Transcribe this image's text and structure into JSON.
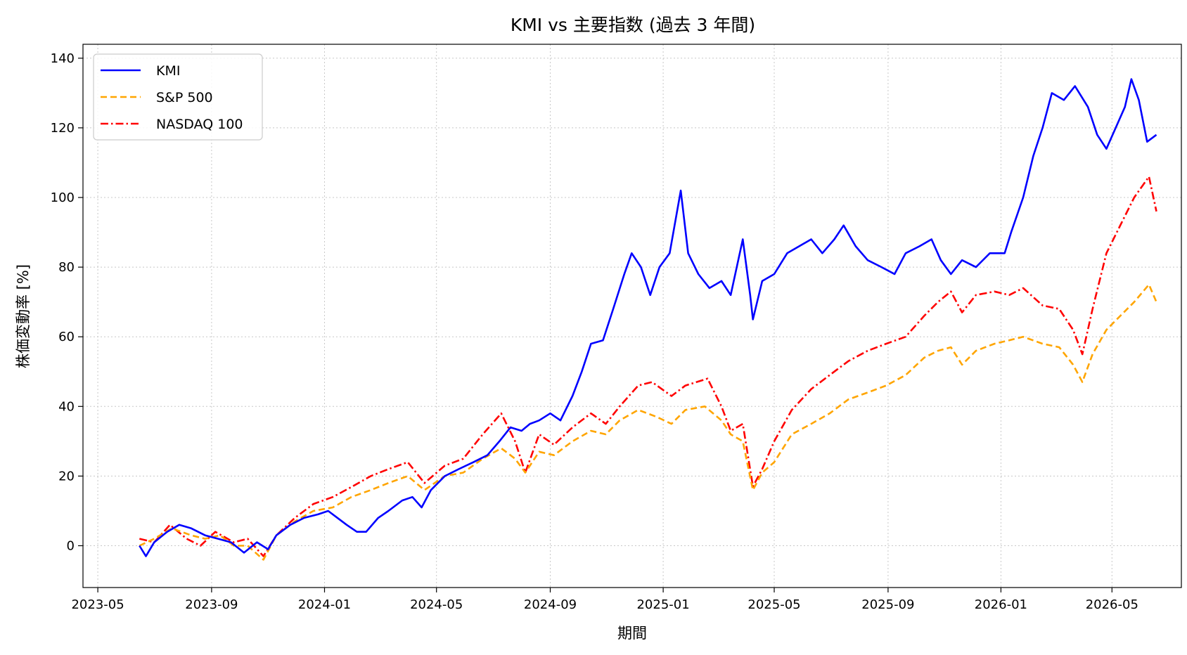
{
  "chart_data": {
    "type": "line",
    "title": "KMI vs 主要指数 (過去 3 年間)",
    "xlabel": "期間",
    "ylabel": "株価変動率 [%]",
    "xlim": [
      "2023-04-15",
      "2026-07-15"
    ],
    "ylim": [
      -12,
      144
    ],
    "x_ticks": [
      "2023-05",
      "2023-09",
      "2024-01",
      "2024-05",
      "2024-09",
      "2025-01",
      "2025-05",
      "2025-09",
      "2026-01",
      "2026-05"
    ],
    "y_ticks": [
      0,
      20,
      40,
      60,
      80,
      100,
      120,
      140
    ],
    "grid": true,
    "legend_position": "top-left",
    "series": [
      {
        "name": "KMI",
        "color": "#0000ff",
        "dash": "solid",
        "points": [
          [
            "2023-06-15",
            0
          ],
          [
            "2023-06-22",
            -3
          ],
          [
            "2023-07-01",
            1
          ],
          [
            "2023-07-15",
            4
          ],
          [
            "2023-07-28",
            6
          ],
          [
            "2023-08-10",
            5
          ],
          [
            "2023-08-25",
            3
          ],
          [
            "2023-09-08",
            2
          ],
          [
            "2023-09-22",
            1
          ],
          [
            "2023-10-06",
            -2
          ],
          [
            "2023-10-20",
            1
          ],
          [
            "2023-11-01",
            -1
          ],
          [
            "2023-11-10",
            3
          ],
          [
            "2023-11-25",
            6
          ],
          [
            "2023-12-10",
            8
          ],
          [
            "2023-12-25",
            9
          ],
          [
            "2024-01-05",
            10
          ],
          [
            "2024-01-15",
            8
          ],
          [
            "2024-01-25",
            6
          ],
          [
            "2024-02-05",
            4
          ],
          [
            "2024-02-15",
            4
          ],
          [
            "2024-02-28",
            8
          ],
          [
            "2024-03-10",
            10
          ],
          [
            "2024-03-25",
            13
          ],
          [
            "2024-04-05",
            14
          ],
          [
            "2024-04-15",
            11
          ],
          [
            "2024-04-25",
            16
          ],
          [
            "2024-05-10",
            20
          ],
          [
            "2024-05-25",
            22
          ],
          [
            "2024-06-10",
            24
          ],
          [
            "2024-06-25",
            26
          ],
          [
            "2024-07-08",
            30
          ],
          [
            "2024-07-20",
            34
          ],
          [
            "2024-08-01",
            33
          ],
          [
            "2024-08-10",
            35
          ],
          [
            "2024-08-20",
            36
          ],
          [
            "2024-09-01",
            38
          ],
          [
            "2024-09-12",
            36
          ],
          [
            "2024-09-25",
            43
          ],
          [
            "2024-10-05",
            50
          ],
          [
            "2024-10-15",
            58
          ],
          [
            "2024-10-28",
            59
          ],
          [
            "2024-11-08",
            68
          ],
          [
            "2024-11-20",
            78
          ],
          [
            "2024-11-28",
            84
          ],
          [
            "2024-12-08",
            80
          ],
          [
            "2024-12-18",
            72
          ],
          [
            "2024-12-28",
            80
          ],
          [
            "2025-01-08",
            84
          ],
          [
            "2025-01-20",
            102
          ],
          [
            "2025-01-28",
            84
          ],
          [
            "2025-02-08",
            78
          ],
          [
            "2025-02-20",
            74
          ],
          [
            "2025-03-05",
            76
          ],
          [
            "2025-03-15",
            72
          ],
          [
            "2025-03-28",
            88
          ],
          [
            "2025-04-05",
            72
          ],
          [
            "2025-04-08",
            65
          ],
          [
            "2025-04-18",
            76
          ],
          [
            "2025-05-01",
            78
          ],
          [
            "2025-05-15",
            84
          ],
          [
            "2025-05-28",
            86
          ],
          [
            "2025-06-10",
            88
          ],
          [
            "2025-06-22",
            84
          ],
          [
            "2025-07-05",
            88
          ],
          [
            "2025-07-15",
            92
          ],
          [
            "2025-07-28",
            86
          ],
          [
            "2025-08-10",
            82
          ],
          [
            "2025-08-25",
            80
          ],
          [
            "2025-09-08",
            78
          ],
          [
            "2025-09-20",
            84
          ],
          [
            "2025-10-05",
            86
          ],
          [
            "2025-10-18",
            88
          ],
          [
            "2025-10-28",
            82
          ],
          [
            "2025-11-08",
            78
          ],
          [
            "2025-11-20",
            82
          ],
          [
            "2025-12-05",
            80
          ],
          [
            "2025-12-20",
            84
          ],
          [
            "2026-01-05",
            84
          ],
          [
            "2026-01-12",
            90
          ],
          [
            "2026-01-25",
            100
          ],
          [
            "2026-02-05",
            112
          ],
          [
            "2026-02-15",
            120
          ],
          [
            "2026-02-25",
            130
          ],
          [
            "2026-03-10",
            128
          ],
          [
            "2026-03-22",
            132
          ],
          [
            "2026-04-05",
            126
          ],
          [
            "2026-04-15",
            118
          ],
          [
            "2026-04-25",
            114
          ],
          [
            "2026-05-05",
            120
          ],
          [
            "2026-05-15",
            126
          ],
          [
            "2026-05-22",
            134
          ],
          [
            "2026-05-30",
            128
          ],
          [
            "2026-06-08",
            116
          ],
          [
            "2026-06-18",
            118
          ]
        ]
      },
      {
        "name": "S&P 500",
        "color": "#ffa500",
        "dash": "dashed",
        "points": [
          [
            "2023-06-15",
            0
          ],
          [
            "2023-07-01",
            2
          ],
          [
            "2023-07-20",
            5
          ],
          [
            "2023-08-10",
            3
          ],
          [
            "2023-08-25",
            2
          ],
          [
            "2023-09-10",
            3
          ],
          [
            "2023-09-25",
            0
          ],
          [
            "2023-10-10",
            0
          ],
          [
            "2023-10-27",
            -4
          ],
          [
            "2023-11-10",
            3
          ],
          [
            "2023-11-30",
            7
          ],
          [
            "2023-12-20",
            10
          ],
          [
            "2024-01-10",
            11
          ],
          [
            "2024-01-30",
            14
          ],
          [
            "2024-02-20",
            16
          ],
          [
            "2024-03-10",
            18
          ],
          [
            "2024-03-31",
            20
          ],
          [
            "2024-04-18",
            16
          ],
          [
            "2024-05-10",
            20
          ],
          [
            "2024-05-30",
            21
          ],
          [
            "2024-06-20",
            25
          ],
          [
            "2024-07-10",
            28
          ],
          [
            "2024-07-25",
            25
          ],
          [
            "2024-08-05",
            21
          ],
          [
            "2024-08-20",
            27
          ],
          [
            "2024-09-05",
            26
          ],
          [
            "2024-09-25",
            30
          ],
          [
            "2024-10-15",
            33
          ],
          [
            "2024-10-31",
            32
          ],
          [
            "2024-11-15",
            36
          ],
          [
            "2024-12-05",
            39
          ],
          [
            "2024-12-25",
            37
          ],
          [
            "2025-01-10",
            35
          ],
          [
            "2025-01-25",
            39
          ],
          [
            "2025-02-15",
            40
          ],
          [
            "2025-03-05",
            36
          ],
          [
            "2025-03-15",
            32
          ],
          [
            "2025-03-28",
            30
          ],
          [
            "2025-04-08",
            16
          ],
          [
            "2025-04-18",
            21
          ],
          [
            "2025-05-01",
            24
          ],
          [
            "2025-05-20",
            32
          ],
          [
            "2025-06-10",
            35
          ],
          [
            "2025-06-30",
            38
          ],
          [
            "2025-07-20",
            42
          ],
          [
            "2025-08-10",
            44
          ],
          [
            "2025-08-30",
            46
          ],
          [
            "2025-09-20",
            49
          ],
          [
            "2025-10-10",
            54
          ],
          [
            "2025-10-25",
            56
          ],
          [
            "2025-11-08",
            57
          ],
          [
            "2025-11-20",
            52
          ],
          [
            "2025-12-05",
            56
          ],
          [
            "2025-12-25",
            58
          ],
          [
            "2026-01-10",
            59
          ],
          [
            "2026-01-25",
            60
          ],
          [
            "2026-02-15",
            58
          ],
          [
            "2026-03-05",
            57
          ],
          [
            "2026-03-20",
            52
          ],
          [
            "2026-03-30",
            47
          ],
          [
            "2026-04-10",
            55
          ],
          [
            "2026-04-25",
            62
          ],
          [
            "2026-05-10",
            66
          ],
          [
            "2026-05-25",
            70
          ],
          [
            "2026-06-10",
            75
          ],
          [
            "2026-06-18",
            70
          ]
        ]
      },
      {
        "name": "NASDAQ 100",
        "color": "#ff0000",
        "dash": "dashdot",
        "points": [
          [
            "2023-06-15",
            2
          ],
          [
            "2023-07-01",
            1
          ],
          [
            "2023-07-18",
            6
          ],
          [
            "2023-08-05",
            2
          ],
          [
            "2023-08-20",
            0
          ],
          [
            "2023-09-05",
            4
          ],
          [
            "2023-09-25",
            1
          ],
          [
            "2023-10-10",
            2
          ],
          [
            "2023-10-27",
            -3
          ],
          [
            "2023-11-10",
            3
          ],
          [
            "2023-11-30",
            8
          ],
          [
            "2023-12-20",
            12
          ],
          [
            "2024-01-10",
            14
          ],
          [
            "2024-01-31",
            17
          ],
          [
            "2024-02-20",
            20
          ],
          [
            "2024-03-10",
            22
          ],
          [
            "2024-03-31",
            24
          ],
          [
            "2024-04-18",
            18
          ],
          [
            "2024-05-10",
            23
          ],
          [
            "2024-05-30",
            25
          ],
          [
            "2024-06-20",
            32
          ],
          [
            "2024-07-10",
            38
          ],
          [
            "2024-07-25",
            30
          ],
          [
            "2024-08-05",
            21
          ],
          [
            "2024-08-20",
            32
          ],
          [
            "2024-09-05",
            29
          ],
          [
            "2024-09-25",
            34
          ],
          [
            "2024-10-15",
            38
          ],
          [
            "2024-10-31",
            35
          ],
          [
            "2024-11-15",
            40
          ],
          [
            "2024-12-05",
            46
          ],
          [
            "2024-12-20",
            47
          ],
          [
            "2025-01-10",
            43
          ],
          [
            "2025-01-25",
            46
          ],
          [
            "2025-02-18",
            48
          ],
          [
            "2025-03-05",
            40
          ],
          [
            "2025-03-15",
            33
          ],
          [
            "2025-03-28",
            35
          ],
          [
            "2025-04-08",
            17
          ],
          [
            "2025-04-18",
            22
          ],
          [
            "2025-05-01",
            30
          ],
          [
            "2025-05-20",
            39
          ],
          [
            "2025-06-10",
            45
          ],
          [
            "2025-06-30",
            49
          ],
          [
            "2025-07-20",
            53
          ],
          [
            "2025-08-10",
            56
          ],
          [
            "2025-08-30",
            58
          ],
          [
            "2025-09-20",
            60
          ],
          [
            "2025-10-10",
            66
          ],
          [
            "2025-10-25",
            70
          ],
          [
            "2025-11-08",
            73
          ],
          [
            "2025-11-20",
            67
          ],
          [
            "2025-12-05",
            72
          ],
          [
            "2025-12-25",
            73
          ],
          [
            "2026-01-10",
            72
          ],
          [
            "2026-01-25",
            74
          ],
          [
            "2026-02-15",
            69
          ],
          [
            "2026-03-05",
            68
          ],
          [
            "2026-03-20",
            62
          ],
          [
            "2026-03-30",
            55
          ],
          [
            "2026-04-10",
            68
          ],
          [
            "2026-04-25",
            84
          ],
          [
            "2026-05-10",
            92
          ],
          [
            "2026-05-25",
            100
          ],
          [
            "2026-06-10",
            106
          ],
          [
            "2026-06-18",
            96
          ]
        ]
      }
    ]
  }
}
